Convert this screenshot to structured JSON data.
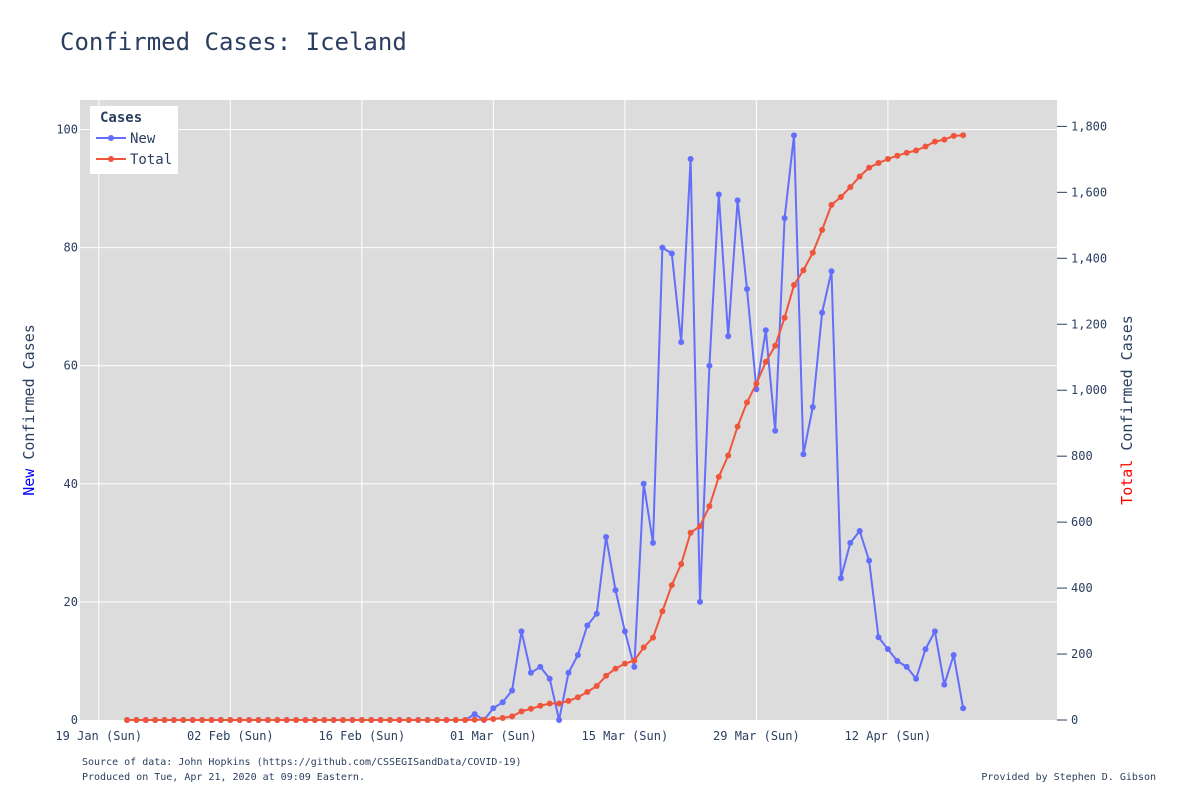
{
  "chart_data": {
    "type": "line",
    "title": "Confirmed Cases: Iceland",
    "x_tick_labels": [
      "19 Jan (Sun)",
      "02 Feb (Sun)",
      "16 Feb (Sun)",
      "01 Mar (Sun)",
      "15 Mar (Sun)",
      "29 Mar (Sun)",
      "12 Apr (Sun)"
    ],
    "x_tick_dates": [
      "2020-01-19",
      "2020-02-02",
      "2020-02-16",
      "2020-03-01",
      "2020-03-15",
      "2020-03-29",
      "2020-04-12"
    ],
    "x_range": [
      "2020-01-17",
      "2020-04-30"
    ],
    "y_left": {
      "label_prefix": "New",
      "label_rest": " Confirmed Cases",
      "prefix_color": "#0000ff",
      "range": [
        0,
        105
      ],
      "ticks": [
        0,
        20,
        40,
        60,
        80,
        100
      ]
    },
    "y_right": {
      "label_prefix": "Total",
      "label_rest": " Confirmed Cases",
      "prefix_color": "#ff0000",
      "range": [
        0,
        1880
      ],
      "ticks": [
        0,
        200,
        400,
        600,
        800,
        1000,
        1200,
        1400,
        1600,
        1800
      ],
      "tick_labels": [
        "0",
        "200",
        "400",
        "600",
        "800",
        "1,000",
        "1,200",
        "1,400",
        "1,600",
        "1,800"
      ]
    },
    "grid": true,
    "legend": {
      "title": "Cases",
      "position": "top-left"
    },
    "series": [
      {
        "name": "New",
        "color": "#636efa",
        "axis": "left",
        "start_date": "2020-01-22",
        "values": [
          0,
          0,
          0,
          0,
          0,
          0,
          0,
          0,
          0,
          0,
          0,
          0,
          0,
          0,
          0,
          0,
          0,
          0,
          0,
          0,
          0,
          0,
          0,
          0,
          0,
          0,
          0,
          0,
          0,
          0,
          0,
          0,
          0,
          0,
          0,
          0,
          0,
          1,
          0,
          2,
          3,
          5,
          15,
          8,
          9,
          7,
          0,
          8,
          11,
          16,
          18,
          31,
          22,
          15,
          9,
          40,
          30,
          80,
          79,
          64,
          95,
          20,
          60,
          89,
          65,
          88,
          73,
          56,
          66,
          49,
          85,
          99,
          45,
          53,
          69,
          76,
          24,
          30,
          32,
          27,
          14,
          12,
          10,
          9,
          7,
          12,
          15,
          6,
          11,
          2
        ]
      },
      {
        "name": "Total",
        "color": "#ef553b",
        "axis": "right",
        "start_date": "2020-01-22",
        "values": [
          0,
          0,
          0,
          0,
          0,
          0,
          0,
          0,
          0,
          0,
          0,
          0,
          0,
          0,
          0,
          0,
          0,
          0,
          0,
          0,
          0,
          0,
          0,
          0,
          0,
          0,
          0,
          0,
          0,
          0,
          0,
          0,
          0,
          0,
          0,
          0,
          0,
          1,
          1,
          3,
          6,
          11,
          26,
          34,
          43,
          50,
          50,
          58,
          69,
          85,
          103,
          134,
          156,
          171,
          180,
          220,
          250,
          330,
          409,
          473,
          568,
          588,
          648,
          737,
          802,
          890,
          963,
          1020,
          1086,
          1135,
          1220,
          1319,
          1364,
          1417,
          1486,
          1562,
          1586,
          1616,
          1648,
          1675,
          1689,
          1701,
          1711,
          1720,
          1727,
          1739,
          1754,
          1760,
          1771,
          1773
        ]
      }
    ]
  },
  "footer": {
    "source": "Source of data: John Hopkins (https://github.com/CSSEGISandData/COVID-19)",
    "produced": "Produced on Tue, Apr 21, 2020 at 09:09 Eastern.",
    "credit": "Provided by Stephen D. Gibson"
  }
}
